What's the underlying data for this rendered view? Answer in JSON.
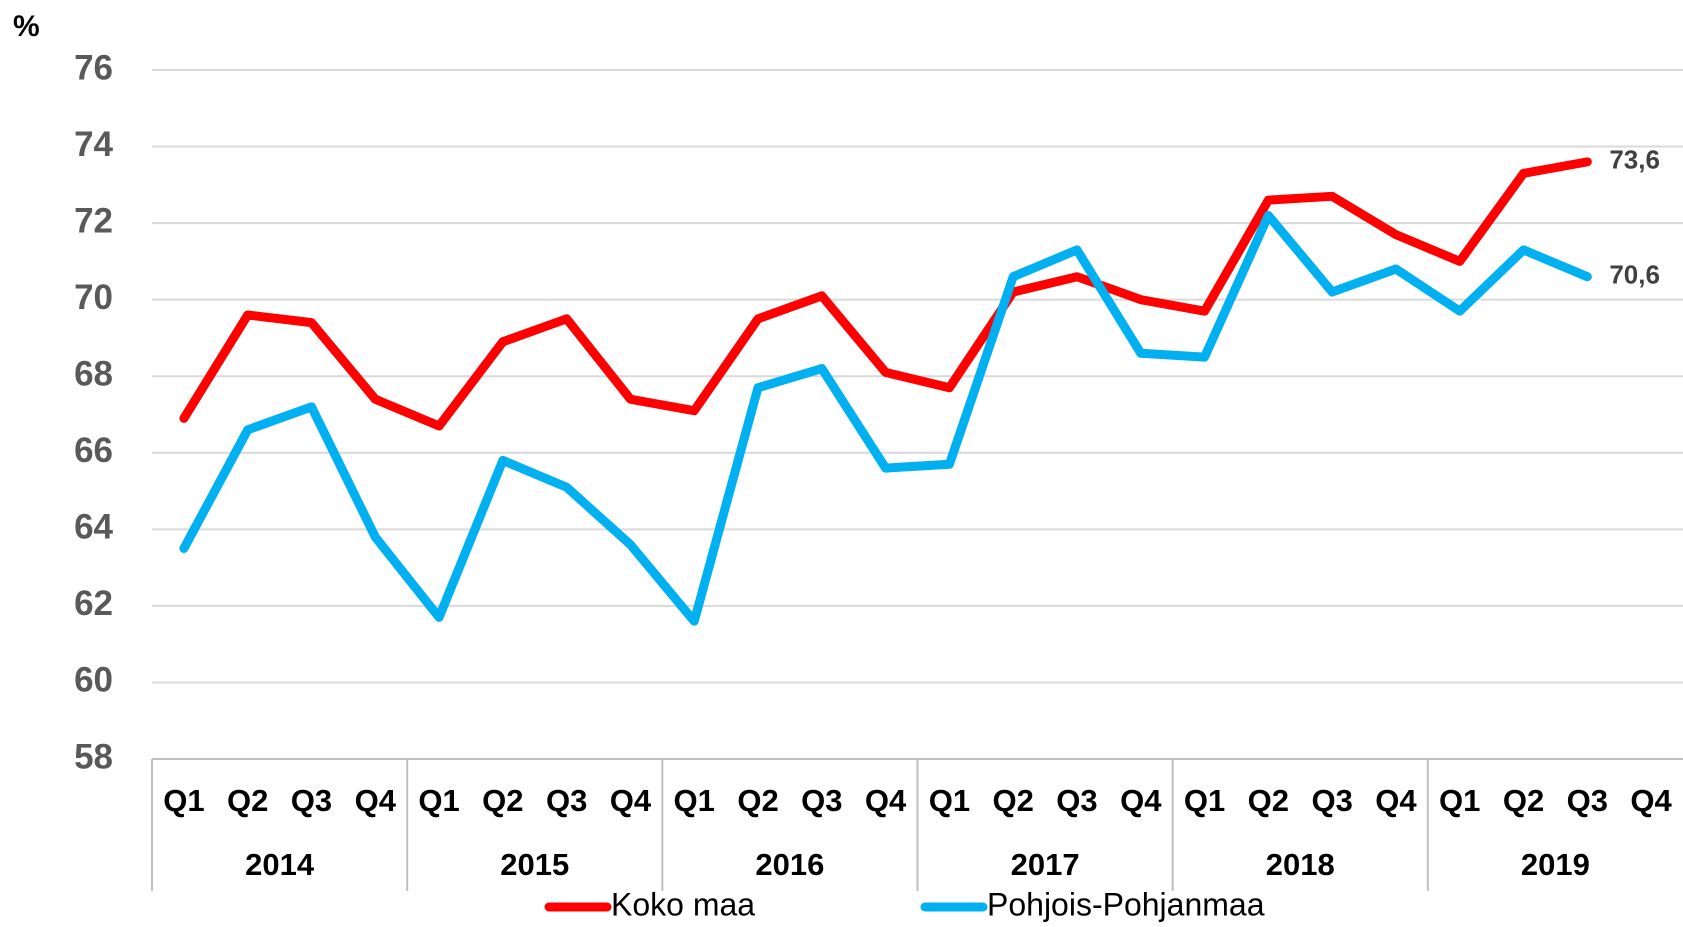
{
  "chart_data": {
    "type": "line",
    "y_label": "%",
    "categories": [
      "Q1",
      "Q2",
      "Q3",
      "Q4",
      "Q1",
      "Q2",
      "Q3",
      "Q4",
      "Q1",
      "Q2",
      "Q3",
      "Q4",
      "Q1",
      "Q2",
      "Q3",
      "Q4",
      "Q1",
      "Q2",
      "Q3",
      "Q4",
      "Q1",
      "Q2",
      "Q3",
      "Q4"
    ],
    "year_groups": [
      "2014",
      "2015",
      "2016",
      "2017",
      "2018",
      "2019"
    ],
    "series": [
      {
        "name": "Koko maa",
        "color": "#ff0000",
        "values": [
          66.9,
          69.6,
          69.4,
          67.4,
          66.7,
          68.9,
          69.5,
          67.4,
          67.1,
          69.5,
          70.1,
          68.1,
          67.7,
          70.2,
          70.6,
          70.0,
          69.7,
          72.6,
          72.7,
          71.7,
          71.0,
          73.3,
          73.6,
          null
        ],
        "value_labels": [
          null,
          null,
          null,
          null,
          null,
          null,
          null,
          null,
          null,
          null,
          null,
          null,
          null,
          null,
          null,
          null,
          null,
          null,
          null,
          null,
          null,
          null,
          "73,6",
          null
        ]
      },
      {
        "name": "Pohjois-Pohjanmaa",
        "color": "#00b0f0",
        "values": [
          63.5,
          66.6,
          67.2,
          63.8,
          61.7,
          65.8,
          65.1,
          63.6,
          61.6,
          67.7,
          68.2,
          65.6,
          65.7,
          70.6,
          71.3,
          68.6,
          68.5,
          72.2,
          70.2,
          70.8,
          69.7,
          71.3,
          70.6,
          null
        ],
        "value_labels": [
          null,
          null,
          null,
          null,
          null,
          null,
          null,
          null,
          null,
          null,
          null,
          null,
          null,
          null,
          null,
          null,
          null,
          null,
          null,
          null,
          null,
          null,
          "70,6",
          null
        ]
      }
    ],
    "ylim": [
      58,
      76
    ],
    "yticks": [
      58,
      60,
      62,
      64,
      66,
      68,
      70,
      72,
      74,
      76
    ],
    "grid": true
  }
}
